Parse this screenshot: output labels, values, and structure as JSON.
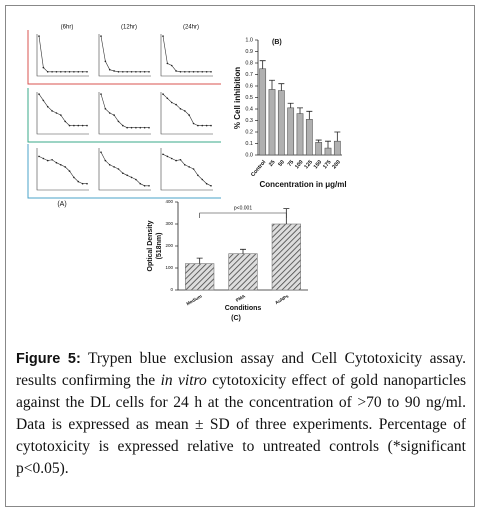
{
  "chart_data": [
    {
      "type": "minilines",
      "title": "(A)",
      "column_titles": [
        "(6hr)",
        "(12hr)",
        "(24hr)"
      ],
      "ylim": [
        0,
        1
      ],
      "panels": [
        {
          "values": [
            0.95,
            0.2,
            0.1,
            0.1,
            0.1,
            0.1,
            0.1,
            0.1,
            0.1,
            0.1,
            0.1,
            0.1
          ]
        },
        {
          "values": [
            0.95,
            0.35,
            0.15,
            0.12,
            0.1,
            0.1,
            0.1,
            0.1,
            0.1,
            0.1,
            0.1,
            0.1
          ]
        },
        {
          "values": [
            0.95,
            0.3,
            0.25,
            0.12,
            0.1,
            0.1,
            0.1,
            0.1,
            0.1,
            0.1,
            0.1,
            0.1
          ]
        },
        {
          "values": [
            0.95,
            0.8,
            0.65,
            0.55,
            0.5,
            0.45,
            0.3,
            0.2,
            0.2,
            0.2,
            0.2,
            0.2
          ]
        },
        {
          "values": [
            0.95,
            0.6,
            0.5,
            0.45,
            0.3,
            0.2,
            0.15,
            0.15,
            0.15,
            0.15,
            0.15,
            0.15
          ]
        },
        {
          "values": [
            0.95,
            0.85,
            0.75,
            0.7,
            0.6,
            0.55,
            0.45,
            0.25,
            0.2,
            0.2,
            0.2,
            0.2
          ]
        },
        {
          "values": [
            0.8,
            0.75,
            0.7,
            0.72,
            0.65,
            0.6,
            0.55,
            0.45,
            0.3,
            0.2,
            0.15,
            0.15
          ]
        },
        {
          "values": [
            0.9,
            0.7,
            0.6,
            0.55,
            0.5,
            0.4,
            0.35,
            0.3,
            0.25,
            0.15,
            0.1,
            0.1
          ]
        },
        {
          "values": [
            0.85,
            0.8,
            0.75,
            0.7,
            0.72,
            0.6,
            0.55,
            0.5,
            0.35,
            0.25,
            0.15,
            0.1
          ]
        }
      ]
    },
    {
      "type": "bar",
      "title": "(B)",
      "y_label": "% Cell inhibition",
      "x_label": "Concentration in μg/ml",
      "categories": [
        "Control",
        "25",
        "50",
        "75",
        "100",
        "125",
        "150",
        "175",
        "200"
      ],
      "values": [
        0.75,
        0.57,
        0.56,
        0.41,
        0.36,
        0.31,
        0.11,
        0.06,
        0.12
      ],
      "errors": [
        0.07,
        0.08,
        0.06,
        0.04,
        0.05,
        0.07,
        0.02,
        0.06,
        0.08
      ],
      "color": "#b0b0b0",
      "ylim": [
        0,
        1
      ],
      "yticks": [
        {
          "value": 0,
          "label": "0.0"
        },
        0.1,
        0.2,
        0.3,
        0.4,
        0.5,
        0.6,
        0.7,
        0.8,
        0.9,
        {
          "value": 1,
          "label": "1.0"
        }
      ]
    },
    {
      "type": "bar",
      "title": "(C)",
      "y_label": [
        "Optical Density",
        "(518nm)"
      ],
      "x_label": "Conditions",
      "annotation": "p<0.001",
      "categories": [
        "Medium",
        "PMA",
        "AuNPs"
      ],
      "values": [
        120,
        165,
        300
      ],
      "errors": [
        25,
        20,
        70
      ],
      "color": "#777777",
      "hatch": true,
      "ylim": [
        0,
        400
      ],
      "yticks": [
        0,
        100,
        200,
        300,
        400
      ]
    }
  ],
  "caption": {
    "label": "Figure 5:",
    "text_1": " Trypen blue exclusion assay and Cell Cytotoxicity assay. results confirming the ",
    "italic": "in vitro",
    "text_2": " cytotoxicity effect of gold nanoparticles against the DL cells for 24 h at the concentration of >70 to 90 ng/ml. Data is expressed as mean ± SD of three experiments. Percentage of cytotoxicity is expressed relative to untreated controls (*significant p<0.05)."
  }
}
